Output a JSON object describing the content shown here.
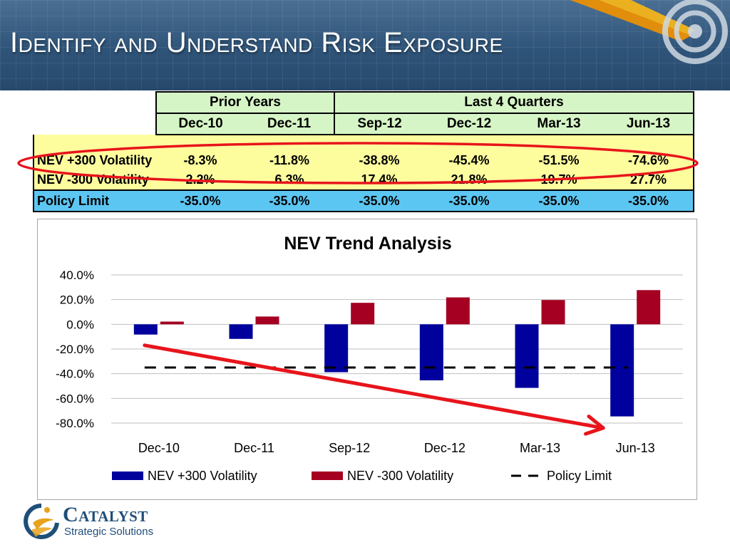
{
  "slide": {
    "title": "Identify and Understand Risk Exposure"
  },
  "table": {
    "group_headers": [
      "Prior Years",
      "Last 4 Quarters"
    ],
    "periods": [
      "Dec-10",
      "Dec-11",
      "Sep-12",
      "Dec-12",
      "Mar-13",
      "Jun-13"
    ],
    "rows": [
      {
        "label": "NEV +300 Volatility",
        "values": [
          "-8.3%",
          "-11.8%",
          "-38.8%",
          "-45.4%",
          "-51.5%",
          "-74.6%"
        ]
      },
      {
        "label": "NEV -300 Volatility",
        "values": [
          "2.2%",
          "6.3%",
          "17.4%",
          "21.8%",
          "19.7%",
          "27.7%"
        ]
      }
    ],
    "policy": {
      "label": "Policy Limit",
      "values": [
        "-35.0%",
        "-35.0%",
        "-35.0%",
        "-35.0%",
        "-35.0%",
        "-35.0%"
      ]
    },
    "highlight_color": "#e8141b"
  },
  "chart_data": {
    "type": "bar",
    "title": "NEV Trend Analysis",
    "categories": [
      "Dec-10",
      "Dec-11",
      "Sep-12",
      "Dec-12",
      "Mar-13",
      "Jun-13"
    ],
    "series": [
      {
        "name": "NEV +300 Volatility",
        "values": [
          -8.3,
          -11.8,
          -38.8,
          -45.4,
          -51.5,
          -74.6
        ],
        "color": "#00009c"
      },
      {
        "name": "NEV -300 Volatility",
        "values": [
          2.2,
          6.3,
          17.4,
          21.8,
          19.7,
          27.7
        ],
        "color": "#a50021"
      }
    ],
    "reference_line": {
      "name": "Policy Limit",
      "value": -35.0,
      "style": "dashed",
      "color": "#000000"
    },
    "y_ticks": [
      "40.0%",
      "20.0%",
      "0.0%",
      "-20.0%",
      "-40.0%",
      "-60.0%",
      "-80.0%"
    ],
    "ylim": [
      -80,
      40
    ],
    "grid": true,
    "legend": "bottom",
    "trend_arrow_color": "#e8141b"
  },
  "logo": {
    "name": "Catalyst",
    "tagline": "Strategic Solutions",
    "colors": {
      "navy": "#1f4e79",
      "gold": "#e8a21c"
    }
  }
}
